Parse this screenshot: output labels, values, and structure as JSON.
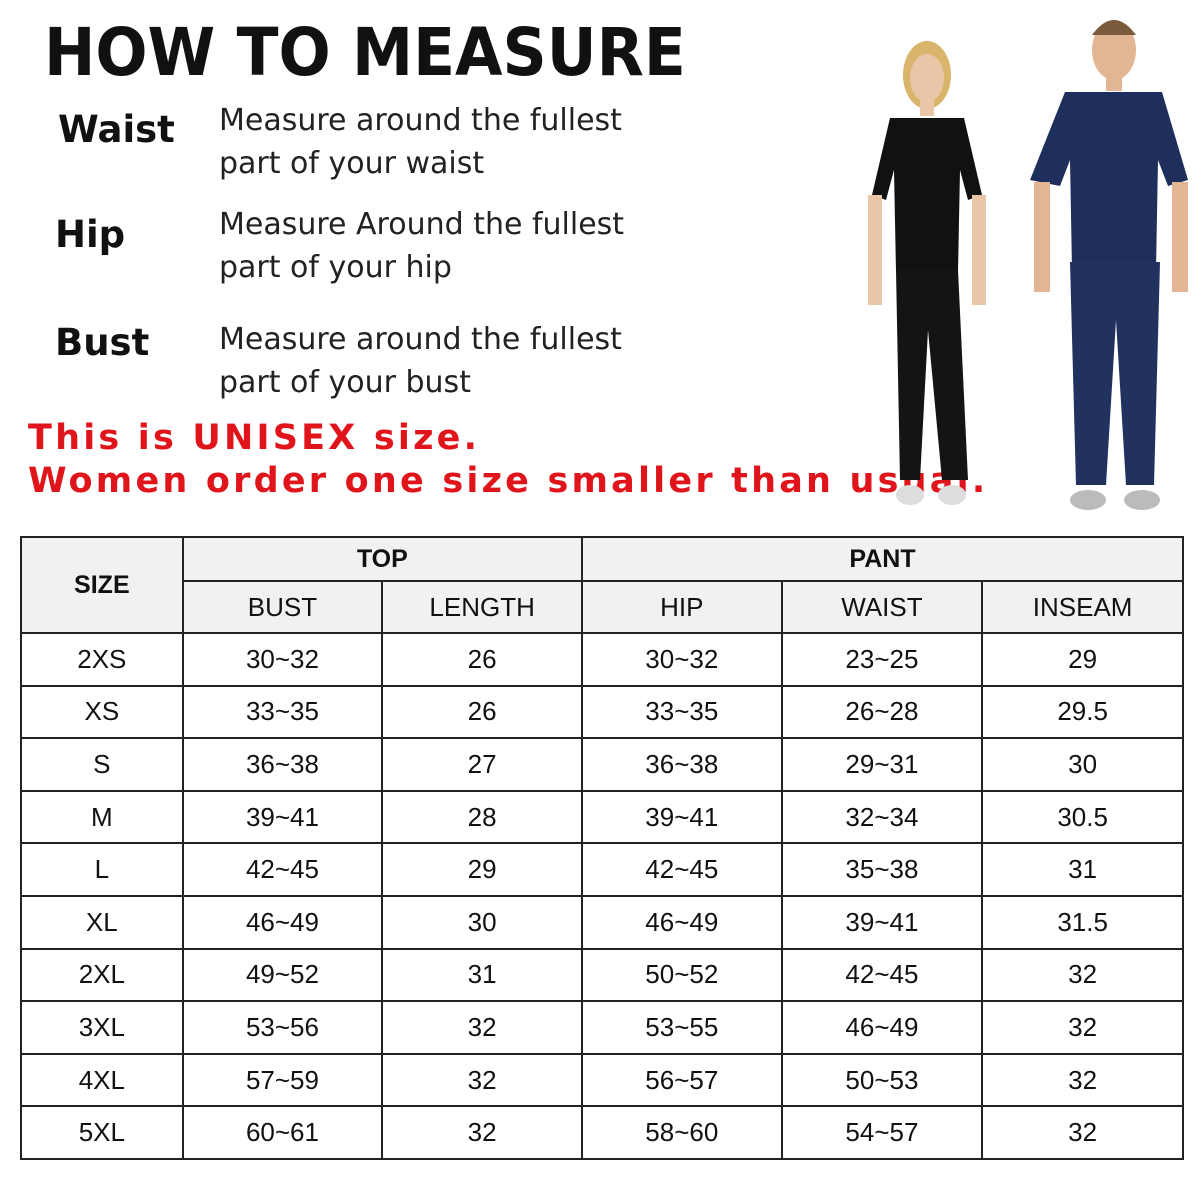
{
  "title": "HOW TO MEASURE",
  "measures": [
    {
      "label": "Waist",
      "lines": [
        "Measure around the fullest",
        "part of your waist"
      ]
    },
    {
      "label": "Hip",
      "lines": [
        "Measure Around the fullest",
        "part of your hip"
      ]
    },
    {
      "label": "Bust",
      "lines": [
        "Measure around the fullest",
        "part of your bust"
      ]
    }
  ],
  "notes": [
    "This is UNISEX size.",
    "Women order one size smaller than usual."
  ],
  "colors": {
    "note": "#e0141b",
    "header_bg": "#f1f1f1",
    "women_scrubs": "#111111",
    "men_scrubs": "#1f2f5c"
  },
  "table": {
    "size_header": "SIZE",
    "top_header": "TOP",
    "pant_header": "PANT",
    "columns": [
      "BUST",
      "LENGTH",
      "HIP",
      "WAIST",
      "INSEAM"
    ],
    "rows": [
      [
        "2XS",
        "30~32",
        "26",
        "30~32",
        "23~25",
        "29"
      ],
      [
        "XS",
        "33~35",
        "26",
        "33~35",
        "26~28",
        "29.5"
      ],
      [
        "S",
        "36~38",
        "27",
        "36~38",
        "29~31",
        "30"
      ],
      [
        "M",
        "39~41",
        "28",
        "39~41",
        "32~34",
        "30.5"
      ],
      [
        "L",
        "42~45",
        "29",
        "42~45",
        "35~38",
        "31"
      ],
      [
        "XL",
        "46~49",
        "30",
        "46~49",
        "39~41",
        "31.5"
      ],
      [
        "2XL",
        "49~52",
        "31",
        "50~52",
        "42~45",
        "32"
      ],
      [
        "3XL",
        "53~56",
        "32",
        "53~55",
        "46~49",
        "32"
      ],
      [
        "4XL",
        "57~59",
        "32",
        "56~57",
        "50~53",
        "32"
      ],
      [
        "5XL",
        "60~61",
        "32",
        "58~60",
        "54~57",
        "32"
      ]
    ]
  }
}
